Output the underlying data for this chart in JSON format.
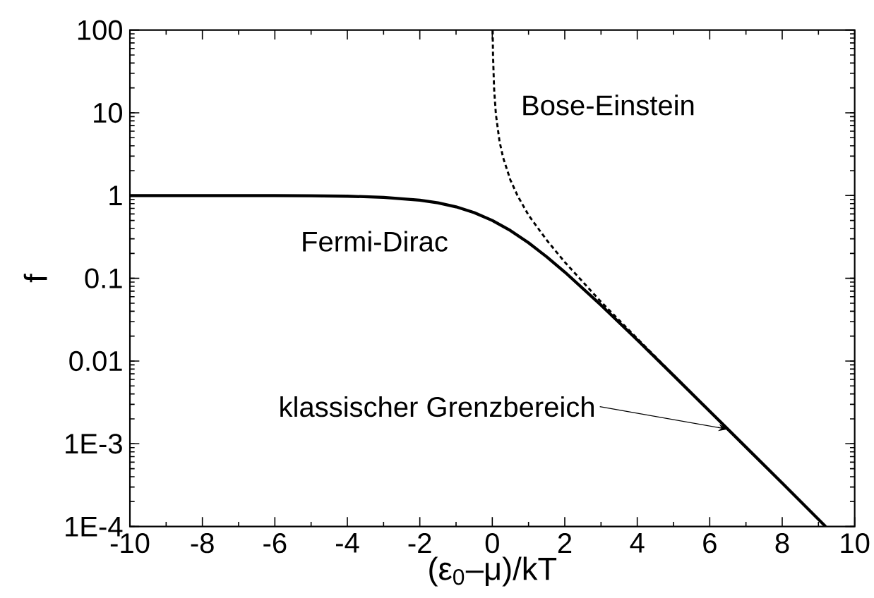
{
  "chart_data": {
    "type": "line",
    "xlabel": "(ε$_{0}$–μ)/kT",
    "ylabel": "f",
    "log": "y",
    "grid": false,
    "marker": "none",
    "xlim": [
      -10,
      10
    ],
    "xticks": [
      -10,
      -8,
      -6,
      -4,
      -2,
      0,
      2,
      4,
      6,
      8,
      10
    ],
    "ylim": [
      0.0001,
      100
    ],
    "yticks": [
      {
        "value": 0.0001,
        "label": "1E-4"
      },
      {
        "value": 0.001,
        "label": "1E-3"
      },
      0.01,
      0.1,
      1,
      10,
      100
    ],
    "series": [
      {
        "name": "Fermi-Dirac",
        "color": "#000000",
        "line_style": "solid",
        "x": [
          -10,
          -8,
          -6,
          -5,
          -4,
          -3,
          -2,
          -1.5,
          -1,
          -0.5,
          0,
          0.5,
          1,
          1.5,
          2,
          3,
          4,
          5,
          6,
          7,
          8,
          9.2
        ],
        "values": [
          1,
          1,
          0.998,
          0.993,
          0.982,
          0.953,
          0.881,
          0.818,
          0.731,
          0.622,
          0.5,
          0.378,
          0.269,
          0.182,
          0.119,
          0.0474,
          0.018,
          0.0067,
          0.00247,
          0.00091,
          0.000335,
          0.0001
        ]
      },
      {
        "name": "Bose-Einstein",
        "color": "#000000",
        "line_style": "dashed",
        "x": [
          0.01,
          0.02,
          0.05,
          0.1,
          0.2,
          0.3,
          0.5,
          0.7,
          1,
          1.5,
          2,
          3,
          4,
          5,
          6,
          7,
          8,
          9.2
        ],
        "values": [
          99.5,
          49.5,
          19.5,
          9.5,
          4.5,
          2.86,
          1.54,
          0.99,
          0.58,
          0.29,
          0.157,
          0.052,
          0.0187,
          0.0068,
          0.00248,
          0.00091,
          0.000336,
          0.0001
        ]
      }
    ],
    "annotations": [
      {
        "text": "klassischer Grenzbereich",
        "x": 6.5,
        "y": 0.0015
      }
    ]
  }
}
